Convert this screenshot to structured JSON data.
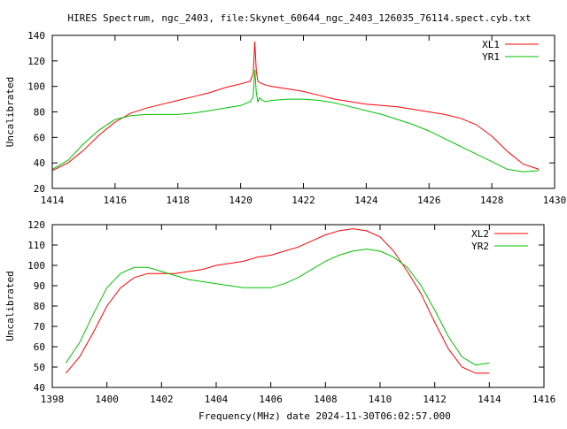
{
  "title": "HIRES Spectrum, ngc_2403, file:Skynet_60644_ngc_2403_126035_76114.spect.cyb.txt",
  "chart_data": [
    {
      "type": "line",
      "xlabel": "",
      "ylabel": "Uncalibrated",
      "xlim": [
        1414,
        1430
      ],
      "ylim": [
        20,
        140
      ],
      "xticks": [
        1414,
        1416,
        1418,
        1420,
        1422,
        1424,
        1426,
        1428,
        1430
      ],
      "yticks": [
        20,
        40,
        60,
        80,
        100,
        120,
        140
      ],
      "legend": "top-right",
      "grid": false,
      "series": [
        {
          "name": "XL1",
          "color": "#ff0000",
          "x": [
            1414.0,
            1414.5,
            1415.0,
            1415.5,
            1416.0,
            1416.5,
            1417.0,
            1417.5,
            1418.0,
            1418.5,
            1419.0,
            1419.5,
            1420.0,
            1420.3,
            1420.4,
            1420.45,
            1420.5,
            1420.55,
            1420.6,
            1420.7,
            1420.8,
            1421.0,
            1421.5,
            1422.0,
            1422.5,
            1423.0,
            1423.5,
            1424.0,
            1424.5,
            1425.0,
            1425.5,
            1426.0,
            1426.5,
            1427.0,
            1427.5,
            1428.0,
            1428.5,
            1429.0,
            1429.5
          ],
          "y": [
            34,
            40,
            50,
            62,
            72,
            79,
            83,
            86,
            89,
            92,
            95,
            99,
            102,
            104,
            110,
            135,
            112,
            104,
            103,
            102,
            101,
            100,
            98,
            96,
            93,
            90,
            88,
            86,
            85,
            84,
            82,
            80,
            78,
            75,
            70,
            61,
            49,
            39,
            35
          ]
        },
        {
          "name": "YR1",
          "color": "#00c000",
          "x": [
            1414.0,
            1414.5,
            1415.0,
            1415.5,
            1416.0,
            1416.5,
            1417.0,
            1417.5,
            1418.0,
            1418.5,
            1419.0,
            1419.5,
            1420.0,
            1420.3,
            1420.4,
            1420.45,
            1420.5,
            1420.55,
            1420.6,
            1420.7,
            1420.8,
            1421.0,
            1421.5,
            1422.0,
            1422.5,
            1423.0,
            1423.5,
            1424.0,
            1424.5,
            1425.0,
            1425.5,
            1426.0,
            1426.5,
            1427.0,
            1427.5,
            1428.0,
            1428.5,
            1429.0,
            1429.5
          ],
          "y": [
            35,
            42,
            55,
            66,
            74,
            77,
            78,
            78,
            78,
            79,
            81,
            83,
            85,
            88,
            92,
            113,
            95,
            88,
            91,
            89,
            88,
            89,
            90,
            90,
            89,
            87,
            84,
            81,
            78,
            74,
            70,
            65,
            59,
            53,
            47,
            41,
            35,
            33,
            34
          ]
        }
      ]
    },
    {
      "type": "line",
      "xlabel": "Frequency(MHz) date 2024-11-30T06:02:57.000",
      "ylabel": "Uncalibrated",
      "xlim": [
        1398,
        1416
      ],
      "ylim": [
        40,
        120
      ],
      "xticks": [
        1398,
        1400,
        1402,
        1404,
        1406,
        1408,
        1410,
        1412,
        1414,
        1416
      ],
      "yticks": [
        40,
        50,
        60,
        70,
        80,
        90,
        100,
        110,
        120
      ],
      "legend": "top-right",
      "grid": false,
      "series": [
        {
          "name": "XL2",
          "color": "#ff0000",
          "x": [
            1398.5,
            1399.0,
            1399.5,
            1400.0,
            1400.5,
            1401.0,
            1401.5,
            1402.0,
            1402.5,
            1403.0,
            1403.5,
            1404.0,
            1404.5,
            1405.0,
            1405.5,
            1406.0,
            1406.5,
            1407.0,
            1407.5,
            1408.0,
            1408.5,
            1409.0,
            1409.5,
            1410.0,
            1410.5,
            1411.0,
            1411.5,
            1412.0,
            1412.5,
            1413.0,
            1413.5,
            1414.0
          ],
          "y": [
            47,
            55,
            67,
            80,
            89,
            94,
            96,
            96,
            96,
            97,
            98,
            100,
            101,
            102,
            104,
            105,
            107,
            109,
            112,
            115,
            117,
            118,
            117,
            114,
            107,
            97,
            86,
            72,
            59,
            50,
            47,
            47
          ]
        },
        {
          "name": "YR2",
          "color": "#00c000",
          "x": [
            1398.5,
            1399.0,
            1399.5,
            1400.0,
            1400.5,
            1401.0,
            1401.5,
            1402.0,
            1402.5,
            1403.0,
            1403.5,
            1404.0,
            1404.5,
            1405.0,
            1405.5,
            1406.0,
            1406.5,
            1407.0,
            1407.5,
            1408.0,
            1408.5,
            1409.0,
            1409.5,
            1410.0,
            1410.5,
            1411.0,
            1411.5,
            1412.0,
            1412.5,
            1413.0,
            1413.5,
            1414.0
          ],
          "y": [
            52,
            62,
            76,
            89,
            96,
            99,
            99,
            97,
            95,
            93,
            92,
            91,
            90,
            89,
            89,
            89,
            91,
            94,
            98,
            102,
            105,
            107,
            108,
            107,
            104,
            99,
            90,
            78,
            65,
            55,
            51,
            52
          ]
        }
      ]
    }
  ]
}
